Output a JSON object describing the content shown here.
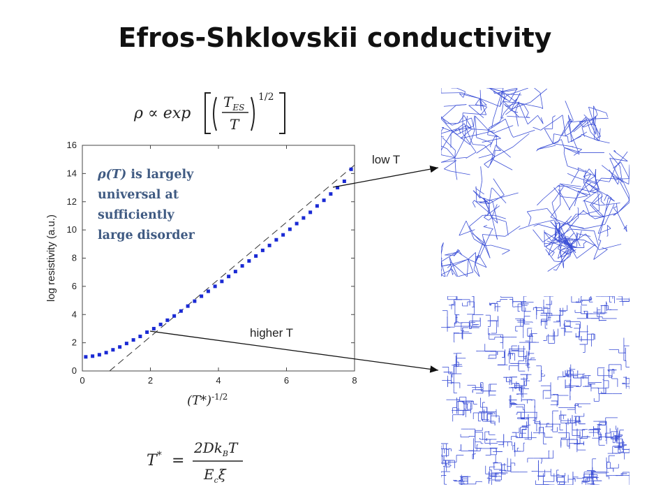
{
  "title": "Efros-Shklovskii conductivity",
  "formula_es": {
    "lhs": "ρ ∝ exp",
    "numerator": "T",
    "numerator_sub": "ES",
    "denominator": "T",
    "exponent": "1/2"
  },
  "annotation": {
    "rho_symbol": "ρ(T)",
    "lines": [
      "is largely",
      "universal at",
      "sufficiently",
      "large disorder"
    ]
  },
  "labels": {
    "low_t": "low T",
    "higher_t": "higher T"
  },
  "tstar_axis_label": {
    "base": "(T*)",
    "exponent": "-1/2"
  },
  "tstar_definition": {
    "lhs": "T",
    "lhs_sup": "*",
    "num": "2Dk",
    "num_sub": "B",
    "num_tail": "T",
    "den": "E",
    "den_sub": "c",
    "den_tail": "ξ"
  },
  "chart_data": {
    "type": "scatter",
    "xlabel": "",
    "ylabel": "log resistivity  (a.u.)",
    "xlim": [
      0,
      8
    ],
    "ylim": [
      0,
      16
    ],
    "x_ticks": [
      "0",
      "2",
      "4",
      "6",
      "8"
    ],
    "y_ticks": [
      "0",
      "2",
      "4",
      "6",
      "8",
      "10",
      "12",
      "14",
      "16"
    ],
    "series": [
      {
        "name": "",
        "color": "#1a2ad4",
        "x": [
          0.1,
          0.3,
          0.5,
          0.7,
          0.9,
          1.1,
          1.3,
          1.5,
          1.7,
          1.9,
          2.1,
          2.3,
          2.5,
          2.7,
          2.9,
          3.1,
          3.3,
          3.5,
          3.7,
          3.9,
          4.1,
          4.3,
          4.5,
          4.7,
          4.9,
          5.1,
          5.3,
          5.5,
          5.7,
          5.9,
          6.1,
          6.3,
          6.5,
          6.7,
          6.9,
          7.1,
          7.3,
          7.5,
          7.7,
          7.9
        ],
        "y": [
          1.0,
          1.05,
          1.15,
          1.3,
          1.5,
          1.7,
          1.95,
          2.2,
          2.45,
          2.75,
          3.0,
          3.3,
          3.6,
          3.9,
          4.25,
          4.6,
          4.95,
          5.3,
          5.65,
          6.0,
          6.35,
          6.7,
          7.05,
          7.45,
          7.8,
          8.15,
          8.55,
          8.9,
          9.3,
          9.65,
          10.05,
          10.45,
          10.85,
          11.25,
          11.7,
          12.1,
          12.55,
          13.0,
          13.45,
          14.3
        ]
      }
    ],
    "fit_line": {
      "style": "dashed",
      "x": [
        0.8,
        8.0
      ],
      "y": [
        0.0,
        14.6
      ]
    },
    "grid": false
  },
  "colors": {
    "series": "#1a2ad4",
    "network": "#3b4fd6",
    "annotation": "#3f5a82"
  }
}
